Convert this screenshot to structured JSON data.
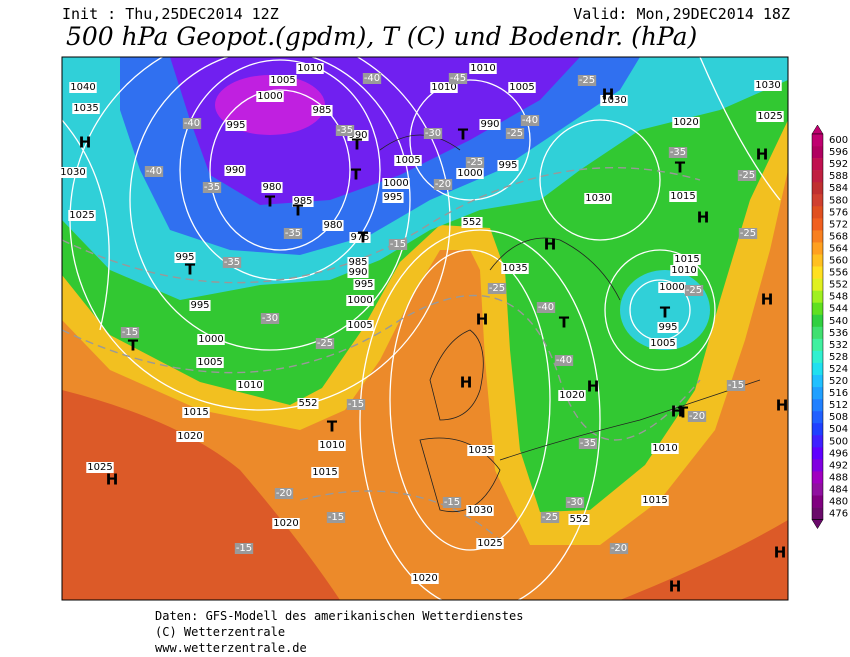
{
  "header": {
    "init": "Init : Thu,25DEC2014 12Z",
    "valid": "Valid: Mon,29DEC2014 18Z",
    "title": "500 hPa Geopot.(gpdm), T (C) und Bodendr. (hPa)"
  },
  "colorbar": {
    "labels": [
      600,
      596,
      592,
      588,
      584,
      580,
      576,
      572,
      568,
      564,
      560,
      556,
      552,
      548,
      544,
      540,
      536,
      532,
      528,
      524,
      520,
      516,
      512,
      508,
      504,
      500,
      496,
      492,
      488,
      484,
      480,
      476
    ]
  },
  "map": {
    "isobar_labels": [
      "1040",
      "1035",
      "1030",
      "1025",
      "1010",
      "1005",
      "1000",
      "985",
      "995",
      "990",
      "990",
      "980",
      "985",
      "980",
      "975",
      "985",
      "990",
      "995",
      "1000",
      "1005",
      "995",
      "995",
      "1000",
      "1005",
      "1010",
      "1015",
      "1020",
      "1025",
      "1020",
      "1015",
      "1010",
      "1035",
      "1030",
      "1025",
      "1020",
      "1015",
      "1010",
      "1020",
      "1005",
      "995",
      "1000",
      "1010",
      "1015",
      "1015",
      "1020",
      "1030",
      "1025",
      "1030",
      "1035",
      "1000",
      "995",
      "990",
      "1005",
      "1000",
      "995",
      "1010",
      "1010",
      "1005",
      "1030"
    ],
    "height_labels": [
      "552",
      "552",
      "552"
    ],
    "temperature_labels": [
      "-40",
      "-40",
      "-35",
      "-35",
      "-30",
      "-25",
      "-15",
      "-35",
      "-40",
      "-45",
      "-35",
      "-30",
      "-25",
      "-40",
      "-25",
      "-35",
      "-25",
      "-20",
      "-15",
      "-25",
      "-40",
      "-40",
      "-35",
      "-30",
      "-25",
      "-20",
      "-15",
      "-20",
      "-15",
      "-15",
      "-15",
      "-20",
      "-25",
      "-25",
      "-25",
      "-15"
    ],
    "highs": [
      "H",
      "H",
      "H",
      "H",
      "H",
      "H",
      "H",
      "H",
      "H",
      "H",
      "H",
      "H",
      "H",
      "H"
    ],
    "lows": [
      "T",
      "T",
      "T",
      "T",
      "T",
      "T",
      "T",
      "T",
      "T",
      "T",
      "T",
      "T",
      "T"
    ]
  },
  "footer": {
    "lines": [
      "Daten: GFS-Modell des amerikanischen Wetterdienstes",
      "(C) Wetterzentrale",
      "www.wetterzentrale.de"
    ]
  }
}
